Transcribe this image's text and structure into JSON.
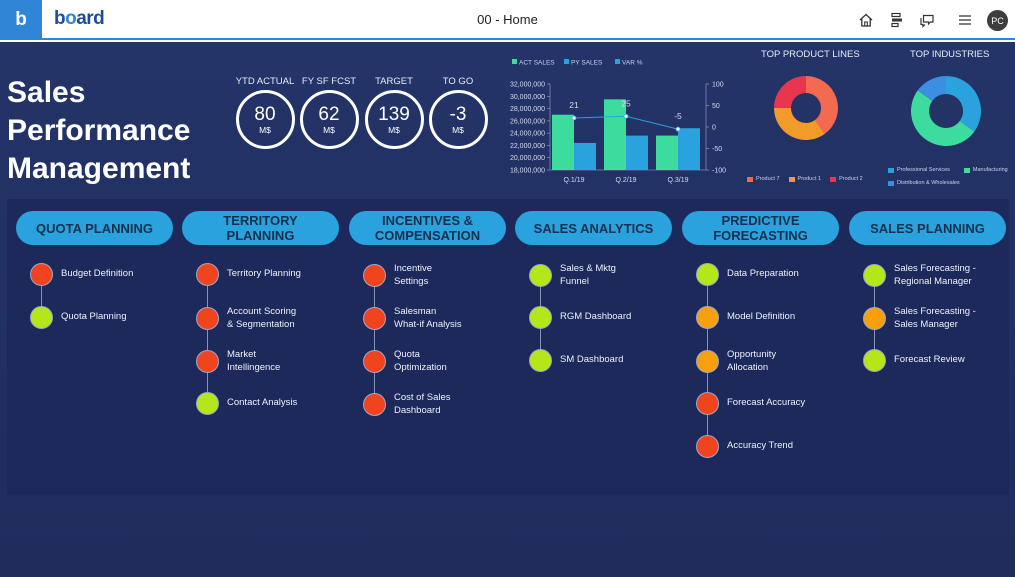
{
  "app": {
    "logo_letter": "b",
    "brand_prefix": "b",
    "brand_o": "o",
    "brand_suffix": "ard",
    "page_title": "00 - Home",
    "avatar_initials": "PC",
    "accent_color": "#2f86d6"
  },
  "header_icons": [
    "home-icon",
    "navigation-panel-icon",
    "comment-icon",
    "menu-icon"
  ],
  "title": [
    "Sales",
    "Performance",
    "Management"
  ],
  "kpis": [
    {
      "label": "YTD ACTUAL",
      "value": "80",
      "unit": "M$"
    },
    {
      "label": "FY SF FCST",
      "value": "62",
      "unit": "M$"
    },
    {
      "label": "TARGET",
      "value": "139",
      "unit": "M$"
    },
    {
      "label": "TO GO",
      "value": "-3",
      "unit": "M$"
    }
  ],
  "chart_data": [
    {
      "type": "bar",
      "categories": [
        "Q.1/19",
        "Q.2/19",
        "Q.3/19"
      ],
      "series": [
        {
          "name": "ACT SALES",
          "type": "bar",
          "color": "#3ddc9e",
          "values": [
            27000000,
            29500000,
            23600000
          ]
        },
        {
          "name": "PY SALES",
          "type": "bar",
          "color": "#2aa2dd",
          "values": [
            22400000,
            23600000,
            24800000
          ]
        },
        {
          "name": "VAR %",
          "type": "line",
          "axis": "right",
          "color": "#2aa2dd",
          "values": [
            21,
            25,
            -5
          ]
        }
      ],
      "y_left": {
        "min": 18000000,
        "max": 32000000,
        "ticks": [
          "32,000,000",
          "30,000,000",
          "28,000,000",
          "26,000,000",
          "24,000,000",
          "22,000,000",
          "20,000,000",
          "18,000,000"
        ]
      },
      "y_right": {
        "min": -100,
        "max": 100,
        "ticks": [
          "100",
          "50",
          "0",
          "-50",
          "-100"
        ]
      },
      "data_labels": [
        "21",
        "25",
        "-5"
      ],
      "legend_position": "top"
    },
    {
      "type": "pie",
      "title": "TOP PRODUCT LINES",
      "labels": [
        "Product 7",
        "Product 1",
        "Product 2"
      ],
      "values": [
        40,
        35,
        25
      ],
      "colors": [
        "#f26a50",
        "#f29b2b",
        "#e8364f"
      ]
    },
    {
      "type": "pie",
      "title": "TOP INDUSTRIES",
      "labels": [
        "Professional Services",
        "Manufacturing",
        "Distribution & Wholesales"
      ],
      "values": [
        35,
        50,
        15
      ],
      "colors": [
        "#2aa2dd",
        "#3ddc9e",
        "#3a8fe0"
      ]
    }
  ],
  "status_colors": {
    "red": "#f0441f",
    "green": "#b5e61a",
    "orange": "#f6a00e"
  },
  "modules": [
    {
      "header": [
        "QUOTA PLANNING"
      ],
      "items": [
        {
          "lines": [
            "Budget Definition"
          ],
          "status": "red"
        },
        {
          "lines": [
            "Quota Planning"
          ],
          "status": "green"
        }
      ]
    },
    {
      "header": [
        "TERRITORY",
        "PLANNING"
      ],
      "items": [
        {
          "lines": [
            "Territory Planning"
          ],
          "status": "red"
        },
        {
          "lines": [
            "Account Scoring",
            "& Segmentation"
          ],
          "status": "red"
        },
        {
          "lines": [
            "Market",
            "Intellingence"
          ],
          "status": "red"
        },
        {
          "lines": [
            "Contact Analysis"
          ],
          "status": "green"
        }
      ]
    },
    {
      "header": [
        "INCENTIVES &",
        "COMPENSATION"
      ],
      "items": [
        {
          "lines": [
            "Incentive",
            "Settings"
          ],
          "status": "red"
        },
        {
          "lines": [
            "Salesman",
            "What-if Analysis"
          ],
          "status": "red"
        },
        {
          "lines": [
            "Quota",
            "Optimization"
          ],
          "status": "red"
        },
        {
          "lines": [
            "Cost of Sales",
            "Dashboard"
          ],
          "status": "red"
        }
      ]
    },
    {
      "header": [
        "SALES ANALYTICS"
      ],
      "items": [
        {
          "lines": [
            "Sales & Mktg",
            "Funnel"
          ],
          "status": "green"
        },
        {
          "lines": [
            "RGM Dashboard"
          ],
          "status": "green"
        },
        {
          "lines": [
            "SM Dashboard"
          ],
          "status": "green"
        }
      ]
    },
    {
      "header": [
        "PREDICTIVE",
        "FORECASTING"
      ],
      "items": [
        {
          "lines": [
            "Data Preparation"
          ],
          "status": "green"
        },
        {
          "lines": [
            "Model Definition"
          ],
          "status": "orange"
        },
        {
          "lines": [
            "Opportunity",
            "Allocation"
          ],
          "status": "orange"
        },
        {
          "lines": [
            "Forecast Accuracy"
          ],
          "status": "red"
        },
        {
          "lines": [
            "Accuracy Trend"
          ],
          "status": "red"
        }
      ]
    },
    {
      "header": [
        "SALES PLANNING"
      ],
      "items": [
        {
          "lines": [
            "Sales Forecasting -",
            "Regional Manager"
          ],
          "status": "green"
        },
        {
          "lines": [
            "Sales Forecasting -",
            "Sales Manager"
          ],
          "status": "orange"
        },
        {
          "lines": [
            "Forecast Review"
          ],
          "status": "green"
        }
      ]
    }
  ]
}
